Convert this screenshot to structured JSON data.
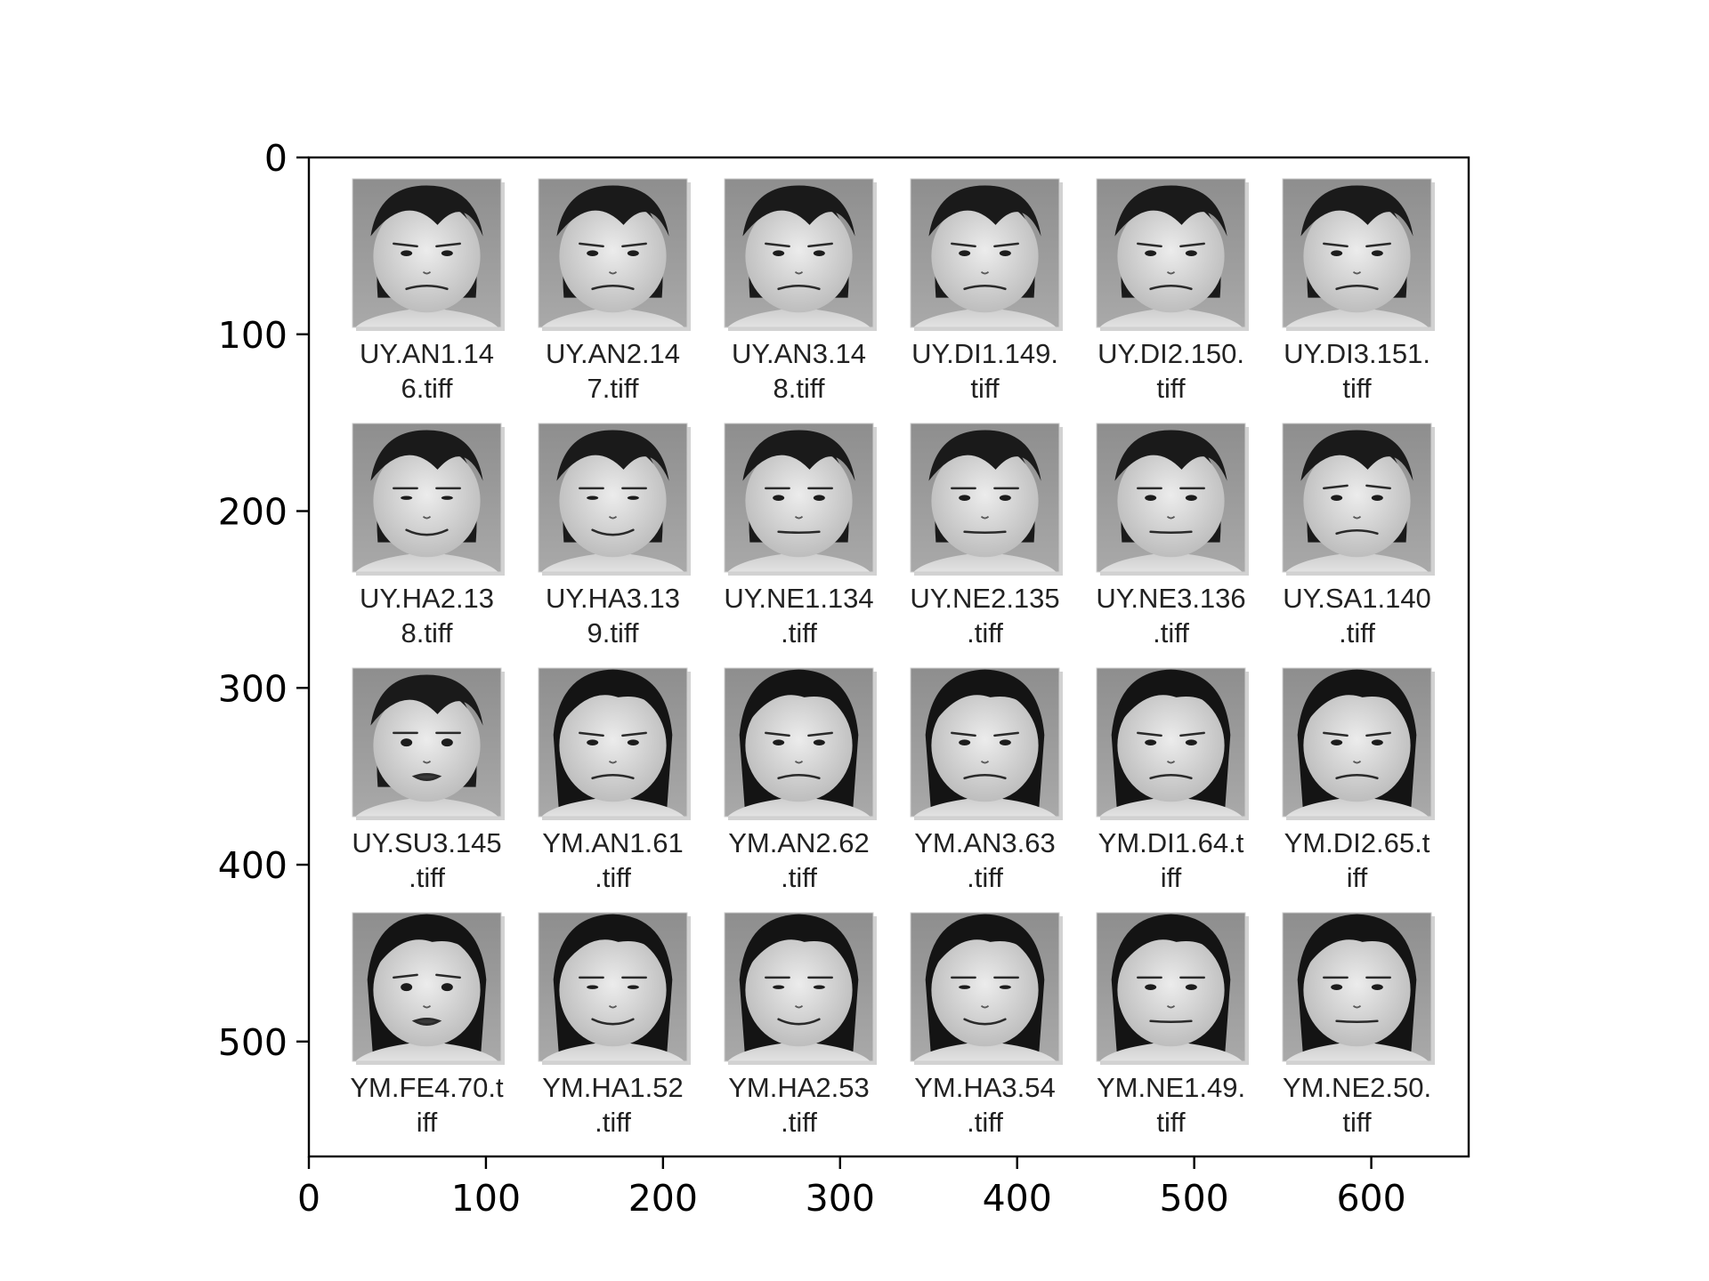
{
  "figure": {
    "background": "#ffffff",
    "frame_color": "#000000"
  },
  "axes": {
    "x_ticks": [
      "0",
      "100",
      "200",
      "300",
      "400",
      "500",
      "600"
    ],
    "y_ticks": [
      "0",
      "100",
      "200",
      "300",
      "400",
      "500"
    ],
    "x_range": [
      0,
      655
    ],
    "y_range": [
      0,
      565
    ],
    "y_inverted": true
  },
  "grid": {
    "columns": 6,
    "rows": 4,
    "cells": [
      {
        "label": [
          "UY.AN1.14",
          "6.tiff"
        ],
        "subject": "UY",
        "expression": "AN"
      },
      {
        "label": [
          "UY.AN2.14",
          "7.tiff"
        ],
        "subject": "UY",
        "expression": "AN"
      },
      {
        "label": [
          "UY.AN3.14",
          "8.tiff"
        ],
        "subject": "UY",
        "expression": "AN"
      },
      {
        "label": [
          "UY.DI1.149.",
          "tiff"
        ],
        "subject": "UY",
        "expression": "DI"
      },
      {
        "label": [
          "UY.DI2.150.",
          "tiff"
        ],
        "subject": "UY",
        "expression": "DI"
      },
      {
        "label": [
          "UY.DI3.151.",
          "tiff"
        ],
        "subject": "UY",
        "expression": "DI"
      },
      {
        "label": [
          "UY.HA2.13",
          "8.tiff"
        ],
        "subject": "UY",
        "expression": "HA"
      },
      {
        "label": [
          "UY.HA3.13",
          "9.tiff"
        ],
        "subject": "UY",
        "expression": "HA"
      },
      {
        "label": [
          "UY.NE1.134",
          ".tiff"
        ],
        "subject": "UY",
        "expression": "NE"
      },
      {
        "label": [
          "UY.NE2.135",
          ".tiff"
        ],
        "subject": "UY",
        "expression": "NE"
      },
      {
        "label": [
          "UY.NE3.136",
          ".tiff"
        ],
        "subject": "UY",
        "expression": "NE"
      },
      {
        "label": [
          "UY.SA1.140",
          ".tiff"
        ],
        "subject": "UY",
        "expression": "SA"
      },
      {
        "label": [
          "UY.SU3.145",
          ".tiff"
        ],
        "subject": "UY",
        "expression": "SU"
      },
      {
        "label": [
          "YM.AN1.61",
          ".tiff"
        ],
        "subject": "YM",
        "expression": "AN"
      },
      {
        "label": [
          "YM.AN2.62",
          ".tiff"
        ],
        "subject": "YM",
        "expression": "AN"
      },
      {
        "label": [
          "YM.AN3.63",
          ".tiff"
        ],
        "subject": "YM",
        "expression": "AN"
      },
      {
        "label": [
          "YM.DI1.64.t",
          "iff"
        ],
        "subject": "YM",
        "expression": "DI"
      },
      {
        "label": [
          "YM.DI2.65.t",
          "iff"
        ],
        "subject": "YM",
        "expression": "DI"
      },
      {
        "label": [
          "YM.FE4.70.t",
          "iff"
        ],
        "subject": "YM",
        "expression": "FE"
      },
      {
        "label": [
          "YM.HA1.52",
          ".tiff"
        ],
        "subject": "YM",
        "expression": "HA"
      },
      {
        "label": [
          "YM.HA2.53",
          ".tiff"
        ],
        "subject": "YM",
        "expression": "HA"
      },
      {
        "label": [
          "YM.HA3.54",
          ".tiff"
        ],
        "subject": "YM",
        "expression": "HA"
      },
      {
        "label": [
          "YM.NE1.49.",
          "tiff"
        ],
        "subject": "YM",
        "expression": "NE"
      },
      {
        "label": [
          "YM.NE2.50.",
          "tiff"
        ],
        "subject": "YM",
        "expression": "NE"
      }
    ]
  }
}
